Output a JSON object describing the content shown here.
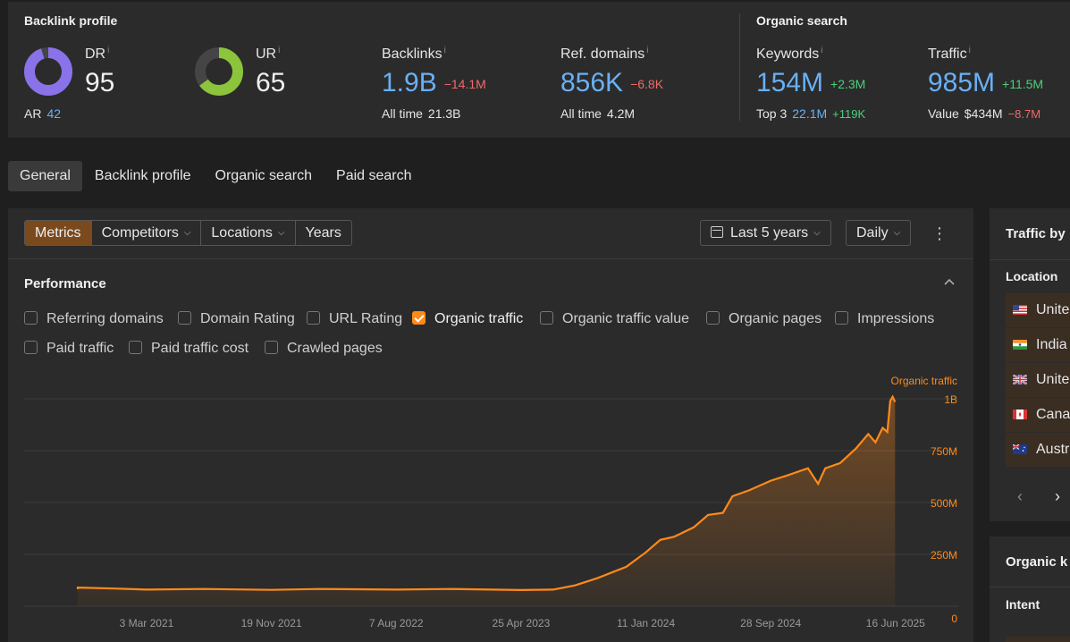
{
  "backlink_profile": {
    "title": "Backlink profile",
    "dr": {
      "label": "DR",
      "info": "i",
      "value": "95",
      "fraction": 0.95
    },
    "ur": {
      "label": "UR",
      "info": "i",
      "value": "65",
      "fraction": 0.65
    },
    "ar": {
      "label": "AR",
      "value": "42"
    },
    "backlinks": {
      "label": "Backlinks",
      "info": "i",
      "value": "1.9B",
      "delta": "−14.1M",
      "sub_label": "All time",
      "sub_value": "21.3B"
    },
    "ref_domains": {
      "label": "Ref. domains",
      "info": "i",
      "value": "856K",
      "delta": "−6.8K",
      "sub_label": "All time",
      "sub_value": "4.2M"
    }
  },
  "organic_search": {
    "title": "Organic search",
    "keywords": {
      "label": "Keywords",
      "info": "i",
      "value": "154M",
      "delta": "+2.3M",
      "sub_label": "Top 3",
      "sub_value": "22.1M",
      "sub_delta": "+119K"
    },
    "traffic": {
      "label": "Traffic",
      "info": "i",
      "value": "985M",
      "delta": "+11.5M",
      "sub_label": "Value",
      "sub_value": "$434M",
      "sub_delta": "−8.7M"
    }
  },
  "main_tabs": [
    "General",
    "Backlink profile",
    "Organic search",
    "Paid search"
  ],
  "toolbar": {
    "segments": [
      "Metrics",
      "Competitors",
      "Locations",
      "Years"
    ],
    "date_range": "Last 5 years",
    "granularity": "Daily"
  },
  "performance": {
    "title": "Performance",
    "checkboxes": [
      {
        "label": "Referring domains",
        "checked": false
      },
      {
        "label": "Domain Rating",
        "checked": false
      },
      {
        "label": "URL Rating",
        "checked": false
      },
      {
        "label": "Organic traffic",
        "checked": true
      },
      {
        "label": "Organic traffic value",
        "checked": false
      },
      {
        "label": "Organic pages",
        "checked": false
      },
      {
        "label": "Impressions",
        "checked": false
      },
      {
        "label": "Paid traffic",
        "checked": false
      },
      {
        "label": "Paid traffic cost",
        "checked": false
      },
      {
        "label": "Crawled pages",
        "checked": false
      }
    ]
  },
  "chart_data": {
    "type": "area",
    "series_name": "Organic traffic",
    "color": "#ff8a1a",
    "x_ticks": [
      "3 Mar 2021",
      "19 Nov 2021",
      "7 Aug 2022",
      "25 Apr 2023",
      "11 Jan 2024",
      "28 Sep 2024",
      "16 Jun 2025"
    ],
    "y_ticks": [
      "0",
      "250M",
      "500M",
      "750M",
      "1B"
    ],
    "ylim": [
      0,
      1000000000
    ],
    "x_domain": [
      "2020-06-20",
      "2025-07-05"
    ],
    "series": [
      {
        "date": "2020-06-20",
        "value": 82000000
      },
      {
        "date": "2020-10-01",
        "value": 90000000
      },
      {
        "date": "2021-01-01",
        "value": 85000000
      },
      {
        "date": "2021-03-03",
        "value": 80000000
      },
      {
        "date": "2021-07-01",
        "value": 83000000
      },
      {
        "date": "2021-11-19",
        "value": 79000000
      },
      {
        "date": "2022-03-01",
        "value": 83000000
      },
      {
        "date": "2022-08-07",
        "value": 80000000
      },
      {
        "date": "2022-12-01",
        "value": 83000000
      },
      {
        "date": "2023-04-25",
        "value": 78000000
      },
      {
        "date": "2023-07-01",
        "value": 80000000
      },
      {
        "date": "2023-08-15",
        "value": 100000000
      },
      {
        "date": "2023-10-01",
        "value": 135000000
      },
      {
        "date": "2023-12-01",
        "value": 190000000
      },
      {
        "date": "2024-01-11",
        "value": 260000000
      },
      {
        "date": "2024-02-10",
        "value": 320000000
      },
      {
        "date": "2024-03-10",
        "value": 335000000
      },
      {
        "date": "2024-04-20",
        "value": 380000000
      },
      {
        "date": "2024-05-20",
        "value": 440000000
      },
      {
        "date": "2024-06-20",
        "value": 450000000
      },
      {
        "date": "2024-07-10",
        "value": 530000000
      },
      {
        "date": "2024-08-15",
        "value": 560000000
      },
      {
        "date": "2024-09-28",
        "value": 605000000
      },
      {
        "date": "2024-11-01",
        "value": 630000000
      },
      {
        "date": "2024-12-15",
        "value": 665000000
      },
      {
        "date": "2025-01-05",
        "value": 590000000
      },
      {
        "date": "2025-01-20",
        "value": 665000000
      },
      {
        "date": "2025-02-20",
        "value": 690000000
      },
      {
        "date": "2025-03-25",
        "value": 760000000
      },
      {
        "date": "2025-04-20",
        "value": 830000000
      },
      {
        "date": "2025-05-05",
        "value": 790000000
      },
      {
        "date": "2025-05-20",
        "value": 860000000
      },
      {
        "date": "2025-05-30",
        "value": 840000000
      },
      {
        "date": "2025-06-05",
        "value": 990000000
      },
      {
        "date": "2025-06-10",
        "value": 1010000000
      },
      {
        "date": "2025-06-15",
        "value": 985000000
      }
    ]
  },
  "traffic_panel": {
    "title": "Traffic by",
    "column": "Location",
    "locations": [
      "Unite",
      "India",
      "Unite",
      "Cana",
      "Austr"
    ]
  },
  "organic_panel": {
    "title": "Organic k",
    "column": "Intent"
  },
  "colors": {
    "accent": "#ff8a1a",
    "blue": "#6ab0f5",
    "positive": "#4cd07a",
    "negative": "#f06a6a"
  }
}
